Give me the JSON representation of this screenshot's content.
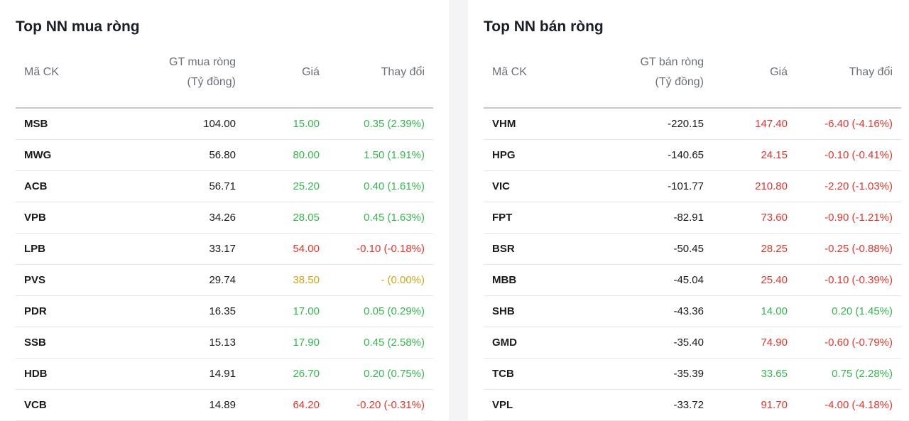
{
  "buy": {
    "title": "Top NN mua ròng",
    "headers": {
      "code": "Mã CK",
      "value_line1": "GT mua ròng",
      "value_line2": "(Tỷ đồng)",
      "price": "Giá",
      "change": "Thay đổi"
    },
    "rows": [
      {
        "code": "MSB",
        "value": "104.00",
        "price": "15.00",
        "change": "0.35 (2.39%)",
        "status": "up"
      },
      {
        "code": "MWG",
        "value": "56.80",
        "price": "80.00",
        "change": "1.50 (1.91%)",
        "status": "up"
      },
      {
        "code": "ACB",
        "value": "56.71",
        "price": "25.20",
        "change": "0.40 (1.61%)",
        "status": "up"
      },
      {
        "code": "VPB",
        "value": "34.26",
        "price": "28.05",
        "change": "0.45 (1.63%)",
        "status": "up"
      },
      {
        "code": "LPB",
        "value": "33.17",
        "price": "54.00",
        "change": "-0.10 (-0.18%)",
        "status": "down"
      },
      {
        "code": "PVS",
        "value": "29.74",
        "price": "38.50",
        "change": "- (0.00%)",
        "status": "ref"
      },
      {
        "code": "PDR",
        "value": "16.35",
        "price": "17.00",
        "change": "0.05 (0.29%)",
        "status": "up"
      },
      {
        "code": "SSB",
        "value": "15.13",
        "price": "17.90",
        "change": "0.45 (2.58%)",
        "status": "up"
      },
      {
        "code": "HDB",
        "value": "14.91",
        "price": "26.70",
        "change": "0.20 (0.75%)",
        "status": "up"
      },
      {
        "code": "VCB",
        "value": "14.89",
        "price": "64.20",
        "change": "-0.20 (-0.31%)",
        "status": "down"
      }
    ]
  },
  "sell": {
    "title": "Top NN bán ròng",
    "headers": {
      "code": "Mã CK",
      "value_line1": "GT bán ròng",
      "value_line2": "(Tỷ đồng)",
      "price": "Giá",
      "change": "Thay đổi"
    },
    "rows": [
      {
        "code": "VHM",
        "value": "-220.15",
        "price": "147.40",
        "change": "-6.40 (-4.16%)",
        "status": "down"
      },
      {
        "code": "HPG",
        "value": "-140.65",
        "price": "24.15",
        "change": "-0.10 (-0.41%)",
        "status": "down"
      },
      {
        "code": "VIC",
        "value": "-101.77",
        "price": "210.80",
        "change": "-2.20 (-1.03%)",
        "status": "down"
      },
      {
        "code": "FPT",
        "value": "-82.91",
        "price": "73.60",
        "change": "-0.90 (-1.21%)",
        "status": "down"
      },
      {
        "code": "BSR",
        "value": "-50.45",
        "price": "28.25",
        "change": "-0.25 (-0.88%)",
        "status": "down"
      },
      {
        "code": "MBB",
        "value": "-45.04",
        "price": "25.40",
        "change": "-0.10 (-0.39%)",
        "status": "down"
      },
      {
        "code": "SHB",
        "value": "-43.36",
        "price": "14.00",
        "change": "0.20 (1.45%)",
        "status": "up"
      },
      {
        "code": "GMD",
        "value": "-35.40",
        "price": "74.90",
        "change": "-0.60 (-0.79%)",
        "status": "down"
      },
      {
        "code": "TCB",
        "value": "-35.39",
        "price": "33.65",
        "change": "0.75 (2.28%)",
        "status": "up"
      },
      {
        "code": "VPL",
        "value": "-33.72",
        "price": "91.70",
        "change": "-4.00 (-4.18%)",
        "status": "down"
      }
    ]
  }
}
